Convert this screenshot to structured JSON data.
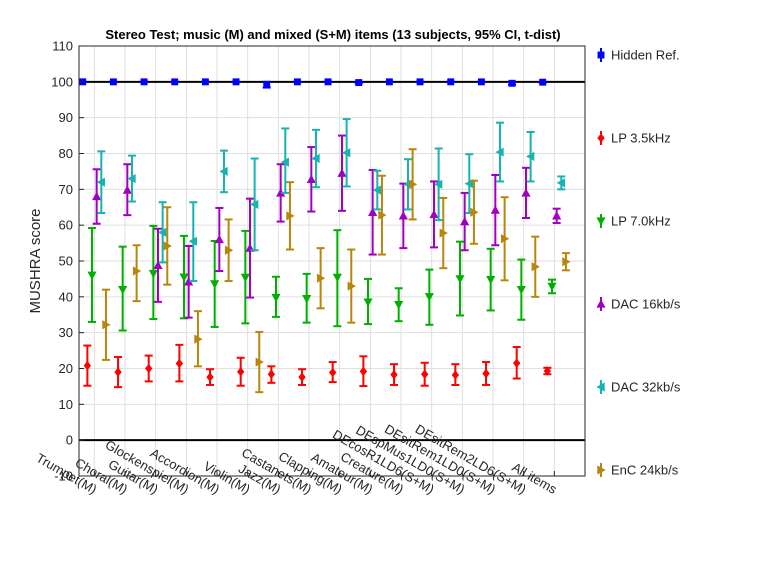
{
  "chart_data": {
    "type": "scatter",
    "title": "Stereo Test; music (M) and mixed (S+M) items (13 subjects, 95% CI, t-dist)",
    "ylabel": "MUSHRA score",
    "xlabel": "",
    "ylim": [
      -10,
      110
    ],
    "yticks": [
      -10,
      0,
      10,
      20,
      30,
      40,
      50,
      60,
      70,
      80,
      90,
      100,
      110
    ],
    "grid": true,
    "legend_placement": "right",
    "reference_lines": [
      0,
      100
    ],
    "categories": [
      "Trumpet(M)",
      "Choral(M)",
      "Guitar(M)",
      "Glockenspiel(M)",
      "Accordion(M)",
      "Violin(M)",
      "Jazz(M)",
      "Castanets(M)",
      "Clapping(M)",
      "Amateur(M)",
      "Creature(M)",
      "DEcosR1LD6(S+M)",
      "DEspMus1LD0(S+M)",
      "DEsitRem1LD0(S+M)",
      "DEsitRem2LD6(S+M)",
      "All items"
    ],
    "series": [
      {
        "name": "Hidden Ref.",
        "color": "#0000ff",
        "marker": "square",
        "mean": [
          100,
          100,
          100,
          100,
          100,
          100,
          99.2,
          100,
          100,
          99.8,
          100,
          100,
          100,
          100,
          99.6,
          99.9
        ],
        "low": [
          100,
          100,
          100,
          100,
          100,
          100,
          98.4,
          100,
          100,
          99.6,
          100,
          100,
          100,
          100,
          99.2,
          99.8
        ],
        "high": [
          100,
          100,
          100,
          100,
          100,
          100,
          100,
          100,
          100,
          100,
          100,
          100,
          100,
          100,
          100,
          100
        ]
      },
      {
        "name": "LP 3.5kHz",
        "color": "#ff0000",
        "marker": "diamond",
        "mean": [
          20.8,
          19,
          20,
          21.4,
          17.6,
          19.1,
          18.4,
          17.6,
          18.9,
          19.2,
          18.3,
          18.4,
          18.2,
          18.6,
          21.5,
          19.3
        ],
        "low": [
          15.2,
          14.8,
          16.4,
          16.4,
          15.4,
          15.2,
          16,
          15.4,
          16.2,
          15.1,
          15.4,
          15.2,
          15.4,
          15.4,
          17.2,
          18.4
        ],
        "high": [
          26.4,
          23.2,
          23.6,
          26.6,
          19.8,
          23,
          20.6,
          19.8,
          21.8,
          23.4,
          21.2,
          21.6,
          21.2,
          21.8,
          26,
          20.2
        ]
      },
      {
        "name": "LP 7.0kHz",
        "color": "#00b000",
        "marker": "triangle-down",
        "mean": [
          46,
          42,
          46.5,
          45.5,
          43.6,
          45.4,
          39.8,
          39.5,
          45.4,
          38.5,
          37.8,
          40,
          45,
          44.8,
          42,
          42.9
        ],
        "low": [
          33,
          30.6,
          33.8,
          34,
          31.6,
          32.6,
          34.4,
          32.8,
          31.8,
          32.4,
          33.2,
          32.2,
          34.8,
          36.2,
          33.6,
          41
        ],
        "high": [
          59.2,
          54,
          59.8,
          57,
          55.6,
          58.4,
          45.6,
          46.4,
          58.6,
          45,
          42.4,
          47.6,
          55.4,
          53.4,
          50.4,
          44.8
        ]
      },
      {
        "name": "DAC 16kb/s",
        "color": "#a000c0",
        "marker": "triangle-up",
        "mean": [
          68,
          69.8,
          48.8,
          44.2,
          56,
          53.6,
          69,
          72.8,
          74.5,
          63.6,
          62.6,
          63,
          61,
          64.2,
          69,
          62.6
        ],
        "low": [
          60.4,
          62.8,
          38.6,
          34.2,
          47.2,
          39.8,
          61,
          63.8,
          64,
          51.8,
          53.6,
          53.8,
          53,
          54.4,
          62,
          60.6
        ],
        "high": [
          75.6,
          77,
          59,
          54.2,
          64.8,
          67.4,
          77,
          81.8,
          85,
          75.4,
          71.6,
          72.2,
          69,
          74,
          76,
          64.6
        ]
      },
      {
        "name": "DAC 32kb/s",
        "color": "#17b2b2",
        "marker": "triangle-left",
        "mean": [
          72,
          73,
          58,
          55.5,
          75,
          65.8,
          77.6,
          78.6,
          80.2,
          69.8,
          71.4,
          71.4,
          71.6,
          80.4,
          79.2,
          71.8
        ],
        "low": [
          63.4,
          66.6,
          49.6,
          44.4,
          69.2,
          53,
          69,
          70.6,
          70.8,
          64.4,
          64.4,
          61.4,
          63.4,
          72.2,
          72.2,
          70
        ],
        "high": [
          80.6,
          79.4,
          66.4,
          66.4,
          80.8,
          78.6,
          87,
          86.6,
          89.6,
          75.2,
          78.4,
          81.4,
          79.8,
          88.6,
          86,
          73.6
        ]
      },
      {
        "name": "EnC 24kb/s",
        "color": "#b8860b",
        "marker": "triangle-right",
        "mean": [
          32.2,
          47.2,
          54.2,
          28.2,
          53,
          21.8,
          62.6,
          45.2,
          43,
          62.8,
          71.4,
          57.8,
          63.6,
          56.2,
          48.4,
          49.8
        ],
        "low": [
          22.4,
          38.8,
          43.4,
          20.6,
          44.4,
          13.4,
          53.2,
          36.8,
          32.8,
          51.8,
          61.6,
          48,
          54.8,
          44.6,
          40,
          47.4
        ],
        "high": [
          42,
          54.4,
          65,
          36,
          61.6,
          30.2,
          72,
          53.6,
          53.2,
          73.8,
          81.2,
          67.6,
          72.4,
          67.8,
          56.8,
          52.2
        ]
      }
    ]
  }
}
